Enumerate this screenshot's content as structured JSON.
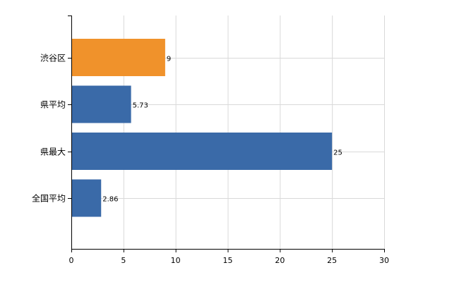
{
  "chart_data": {
    "type": "bar",
    "orientation": "horizontal",
    "categories": [
      "渋谷区",
      "県平均",
      "県最大",
      "全国平均"
    ],
    "values": [
      9,
      5.73,
      25,
      2.86
    ],
    "value_labels": [
      "9",
      "5.73",
      "25",
      "2.86"
    ],
    "bar_colors": [
      "#f0922b",
      "#3a6aa8",
      "#3a6aa8",
      "#3a6aa8"
    ],
    "highlight_color": "#f0922b",
    "base_color": "#3a6aa8",
    "xlim": [
      0,
      30
    ],
    "x_ticks": [
      0,
      5,
      10,
      15,
      20,
      25,
      30
    ],
    "grid": true,
    "legend": "none",
    "title": "",
    "xlabel": "",
    "ylabel": ""
  }
}
